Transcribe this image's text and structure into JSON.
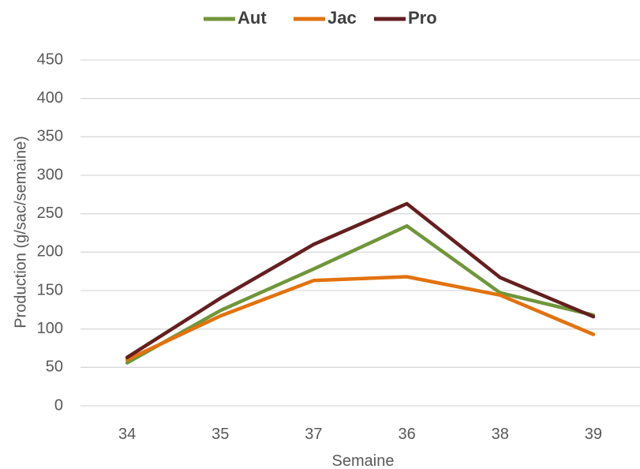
{
  "chart_data": {
    "type": "line",
    "title": "",
    "xlabel": "Semaine",
    "ylabel": "Production (g/sac/semaine)",
    "categories": [
      "34",
      "35",
      "37",
      "36",
      "38",
      "39"
    ],
    "ylim": [
      0,
      450
    ],
    "yticks": [
      0,
      50,
      100,
      150,
      200,
      250,
      300,
      350,
      400,
      450
    ],
    "grid": true,
    "legend_position": "top",
    "series": [
      {
        "name": "Aut",
        "color": "#70963b",
        "values": [
          56,
          124,
          178,
          234,
          147,
          118
        ]
      },
      {
        "name": "Jac",
        "color": "#e2720f",
        "values": [
          60,
          117,
          163,
          168,
          144,
          93
        ]
      },
      {
        "name": "Pro",
        "color": "#641f1f",
        "values": [
          63,
          140,
          210,
          263,
          167,
          116
        ]
      }
    ]
  }
}
